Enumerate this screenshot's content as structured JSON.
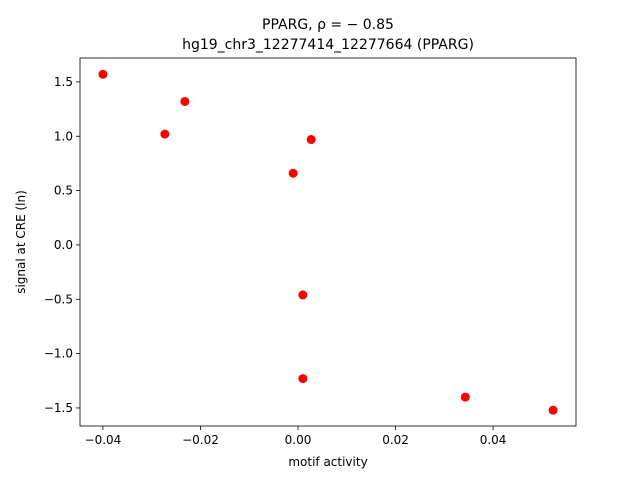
{
  "chart_data": {
    "type": "scatter",
    "title": "PPARG, ρ = − 0.85",
    "subtitle": "hg19_chr3_12277414_12277664 (PPARG)",
    "x_label": "motif activity",
    "y_label": "signal at CRE (ln)",
    "color": "#ff0000",
    "x": [
      -0.04,
      -0.0273,
      -0.0232,
      0.0027,
      -0.001,
      0.001,
      0.001,
      0.0343,
      0.0523
    ],
    "y": [
      1.57,
      1.02,
      1.32,
      0.97,
      0.66,
      -0.46,
      -1.23,
      -1.4,
      -1.52
    ],
    "xlim": [
      -0.0447,
      0.057
    ],
    "ylim": [
      -1.666,
      1.72
    ],
    "xticks": [
      {
        "value": -0.04,
        "label": "−0.04"
      },
      {
        "value": -0.02,
        "label": "−0.02"
      },
      {
        "value": 0,
        "label": "0.00"
      },
      0.02,
      0.04
    ],
    "yticks": [
      {
        "value": -1.5,
        "label": "−1.5"
      },
      {
        "value": -1,
        "label": "−1.0"
      },
      {
        "value": -0.5,
        "label": "−0.5"
      },
      {
        "value": 0,
        "label": "0.0"
      },
      0.5,
      {
        "value": 1,
        "label": "1.0"
      },
      1.5
    ],
    "grid": false
  }
}
